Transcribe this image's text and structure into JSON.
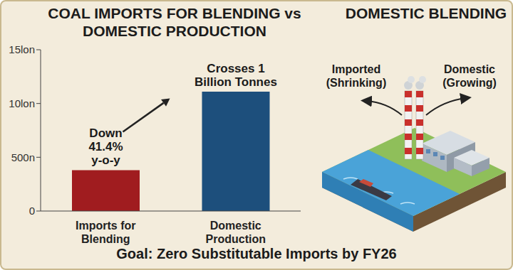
{
  "chart_data": {
    "type": "bar",
    "title": "COAL IMPORTS FOR BLENDING vs DOMESTIC PRODUCTION",
    "categories": [
      "Imports for Blending",
      "Domestic Production"
    ],
    "values": [
      380,
      1110
    ],
    "colors": [
      "#a01c1f",
      "#1d4f7c"
    ],
    "ylim": [
      0,
      1500
    ],
    "yticks": [
      0,
      {
        "value": 500,
        "label": "500n"
      },
      {
        "value": 1000,
        "label": "10lon"
      },
      {
        "value": 1500,
        "label": "15lon"
      }
    ],
    "grid": false,
    "annotations": [
      "Down 41.4% y-o-y",
      "Crosses 1 Billion Tonnes"
    ]
  },
  "illustration": {
    "title": "DOMESTIC BLENDING",
    "labels": [
      "Imported (Shrinking)",
      "Domestic (Growing)"
    ]
  },
  "footer": "Goal: Zero Substitutable Imports by FY26"
}
